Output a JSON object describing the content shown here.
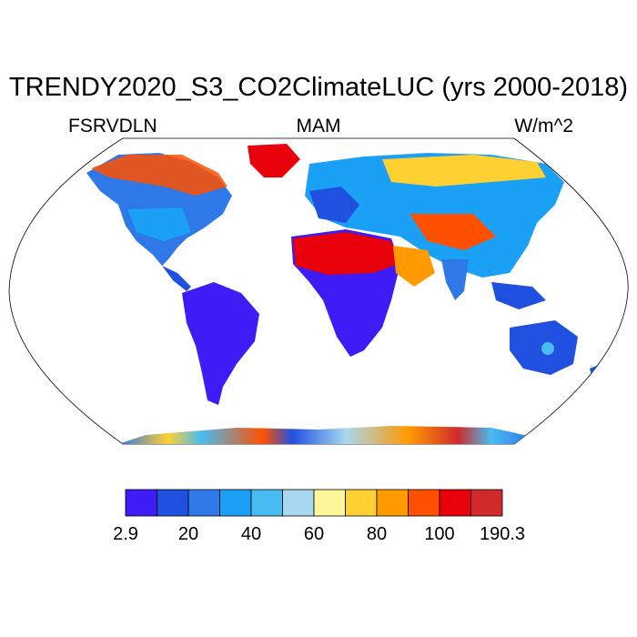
{
  "title": "TRENDY2020_S3_CO2ClimateLUC (yrs 2000-2018)",
  "variable": "FSRVDLN",
  "season": "MAM",
  "units": "W/m^2",
  "colorbar": {
    "colors": [
      "#3d1cf5",
      "#2050e0",
      "#2f78e8",
      "#1aa0f5",
      "#48bcf0",
      "#a8d8f0",
      "#fff79a",
      "#ffd032",
      "#ff9a00",
      "#ff5000",
      "#e8000a",
      "#d02a2a"
    ],
    "tick_labels": [
      "2.9",
      "20",
      "40",
      "60",
      "80",
      "100",
      "190.3"
    ]
  }
}
